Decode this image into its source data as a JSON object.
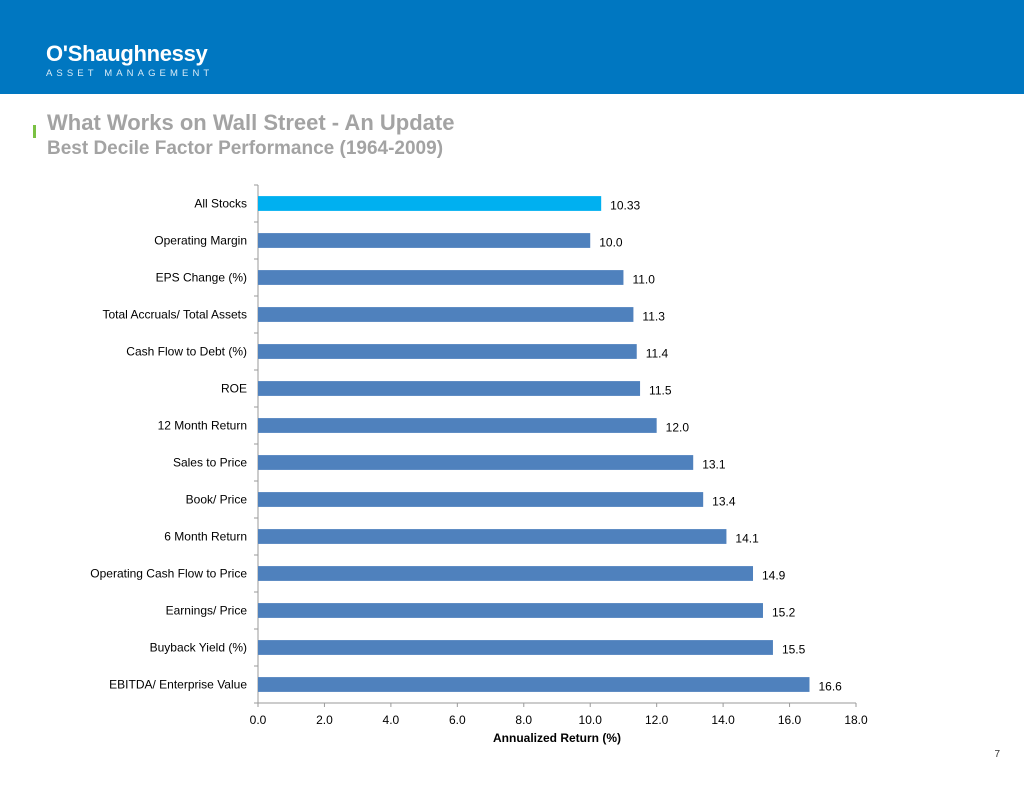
{
  "brand": {
    "name": "O'Shaughnessy",
    "tagline": "ASSET MANAGEMENT"
  },
  "slide": {
    "title": "What Works on Wall Street - An Update",
    "subtitle": "Best Decile Factor Performance (1964-2009)",
    "page_number": "7"
  },
  "colors": {
    "header": "#0077c1",
    "accent": "#7ac143",
    "bar_default": "#4f81bd",
    "bar_highlight": "#00b0f0",
    "title_text": "#a3a3a3"
  },
  "chart_data": {
    "type": "bar",
    "orientation": "horizontal",
    "categories": [
      "All Stocks",
      "Operating Margin",
      "EPS Change (%)",
      "Total  Accruals/ Total Assets",
      "Cash Flow to Debt (%)",
      "ROE",
      "12 Month Return",
      "Sales to Price",
      "Book/ Price",
      "6 Month Return ",
      "Operating Cash Flow to Price",
      "Earnings/ Price",
      "Buyback Yield (%)",
      "EBITDA/ Enterprise Value"
    ],
    "values": [
      10.33,
      10.0,
      11.0,
      11.3,
      11.4,
      11.5,
      12.0,
      13.1,
      13.4,
      14.1,
      14.9,
      15.2,
      15.5,
      16.6
    ],
    "value_labels": [
      "10.33",
      "10.0",
      "11.0",
      "11.3",
      "11.4",
      "11.5",
      "12.0",
      "13.1",
      "13.4",
      "14.1",
      "14.9",
      "15.2",
      "15.5",
      "16.6"
    ],
    "highlight_index": 0,
    "xlabel": "Annualized Return (%)",
    "ylabel": "",
    "xlim": [
      0,
      18
    ],
    "xticks": [
      0,
      2,
      4,
      6,
      8,
      10,
      12,
      14,
      16,
      18
    ],
    "xtick_labels": [
      "0.0",
      "2.0",
      "4.0",
      "6.0",
      "8.0",
      "10.0",
      "12.0",
      "14.0",
      "16.0",
      "18.0"
    ],
    "grid": false,
    "legend": "none"
  }
}
